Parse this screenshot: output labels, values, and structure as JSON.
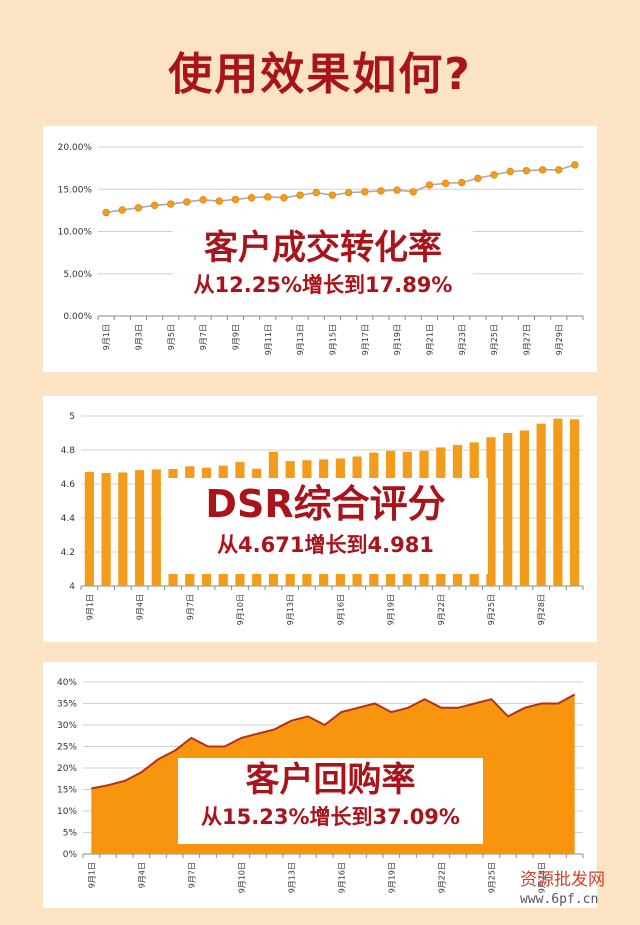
{
  "title": "使用效果如何?",
  "chart_data": [
    {
      "type": "line",
      "callout_title": "客户成交转化率",
      "callout_sub": "从12.25%增长到17.89%",
      "y_ticks": [
        "20.00%",
        "15.00%",
        "10.00%",
        "5.00%",
        "0.00%"
      ],
      "ylim": [
        0,
        0.2
      ],
      "x_labels": [
        "9月1日",
        "9月3日",
        "9月5日",
        "9月7日",
        "9月9日",
        "9月11日",
        "9月13日",
        "9月15日",
        "9月17日",
        "9月19日",
        "9月21日",
        "9月23日",
        "9月25日",
        "9月27日",
        "9月29日"
      ],
      "values": [
        0.1225,
        0.1255,
        0.128,
        0.131,
        0.1325,
        0.135,
        0.1375,
        0.136,
        0.138,
        0.14,
        0.141,
        0.14,
        0.143,
        0.146,
        0.143,
        0.146,
        0.147,
        0.148,
        0.149,
        0.147,
        0.155,
        0.157,
        0.158,
        0.163,
        0.167,
        0.171,
        0.172,
        0.173,
        0.173,
        0.1789
      ],
      "colors": {
        "line": "#aaaaaa",
        "marker": "#f39c1c",
        "grid": "#d0d0d0"
      }
    },
    {
      "type": "bar",
      "callout_title": "DSR综合评分",
      "callout_sub": "从4.671增长到4.981",
      "y_ticks": [
        "5",
        "4.8",
        "4.6",
        "4.4",
        "4.2",
        "4"
      ],
      "ylim": [
        4,
        5
      ],
      "x_labels": [
        "9月1日",
        "9月4日",
        "9月7日",
        "9月10日",
        "9月13日",
        "9月16日",
        "9月19日",
        "9月22日",
        "9月25日",
        "9月28日"
      ],
      "values": [
        4.671,
        4.665,
        4.668,
        4.682,
        4.686,
        4.688,
        4.704,
        4.696,
        4.708,
        4.73,
        4.69,
        4.79,
        4.735,
        4.74,
        4.745,
        4.75,
        4.762,
        4.785,
        4.795,
        4.79,
        4.795,
        4.815,
        4.83,
        4.845,
        4.875,
        4.9,
        4.915,
        4.955,
        4.985,
        4.981
      ],
      "colors": {
        "bar": "#f39c1c",
        "grid": "#d0d0d0"
      }
    },
    {
      "type": "area",
      "callout_title": "客户回购率",
      "callout_sub": "从15.23%增长到37.09%",
      "y_ticks": [
        "40%",
        "35%",
        "30%",
        "25%",
        "20%",
        "15%",
        "10%",
        "5%",
        "0%"
      ],
      "ylim": [
        0,
        0.4
      ],
      "x_labels": [
        "9月1日",
        "9月4日",
        "9月7日",
        "9月10日",
        "9月13日",
        "9月16日",
        "9月19日",
        "9月22日",
        "9月25日",
        "9月28日"
      ],
      "values": [
        0.1523,
        0.16,
        0.17,
        0.19,
        0.22,
        0.24,
        0.27,
        0.25,
        0.25,
        0.27,
        0.28,
        0.29,
        0.31,
        0.32,
        0.3,
        0.33,
        0.34,
        0.35,
        0.33,
        0.34,
        0.36,
        0.34,
        0.34,
        0.35,
        0.36,
        0.32,
        0.34,
        0.35,
        0.35,
        0.3709
      ],
      "colors": {
        "fill": "#f7950f",
        "edge": "#b3301a",
        "grid": "#d0d0d0"
      }
    }
  ],
  "watermark": {
    "line1": "资源批发网",
    "line2": "www.6pf.cn"
  }
}
